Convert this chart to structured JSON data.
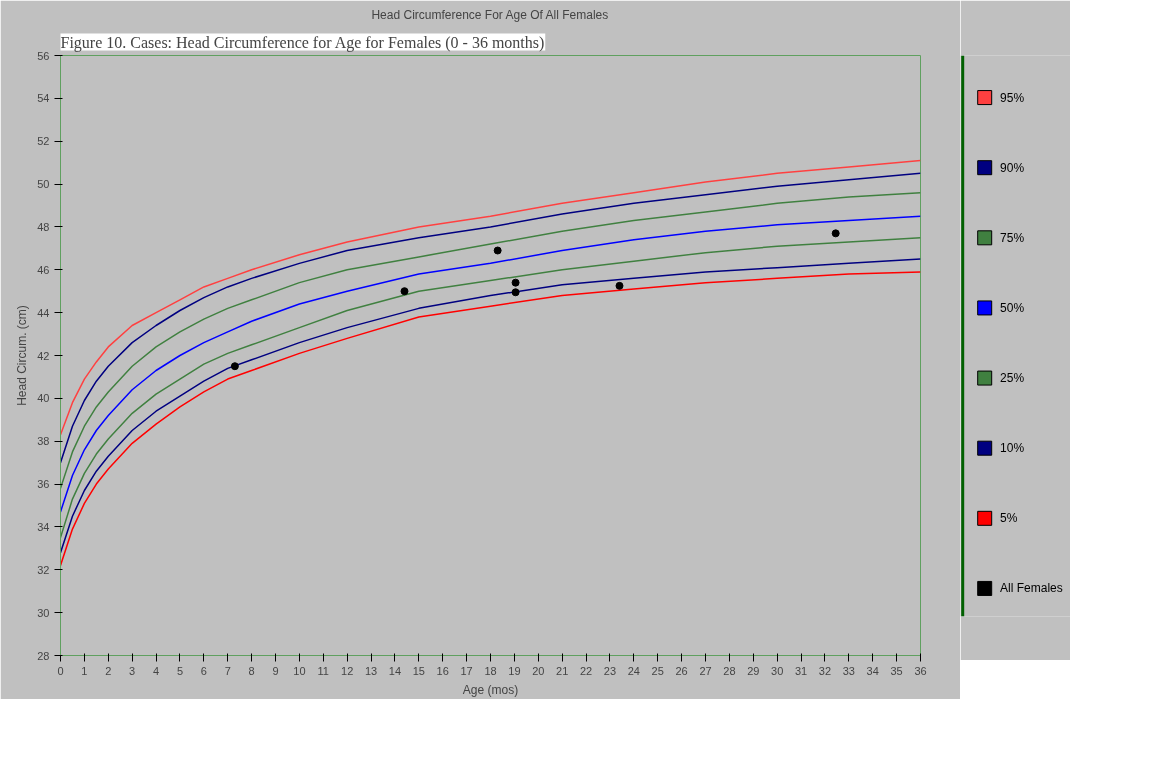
{
  "chart_data": {
    "type": "line",
    "title": "Head Circumference For Age Of All Females",
    "xlabel": "Age (mos)",
    "ylabel": "Head Circum. (cm)",
    "annotations": [
      "Figure 10. Cases: Head Circumference for Age for Females (0 - 36 months)"
    ],
    "x": [
      0,
      0.5,
      1,
      1.5,
      2,
      3,
      4,
      5,
      6,
      7,
      8,
      10,
      12,
      15,
      18,
      21,
      24,
      27,
      30,
      33,
      36
    ],
    "xlim": [
      0,
      36
    ],
    "xticks": [
      0,
      1,
      2,
      3,
      4,
      5,
      6,
      7,
      8,
      9,
      10,
      11,
      12,
      13,
      14,
      15,
      16,
      17,
      18,
      19,
      20,
      21,
      22,
      23,
      24,
      25,
      26,
      27,
      28,
      29,
      30,
      31,
      32,
      33,
      34,
      35,
      36
    ],
    "ylim": [
      28,
      56
    ],
    "yticks": [
      28,
      30,
      32,
      34,
      36,
      38,
      40,
      42,
      44,
      46,
      48,
      50,
      52,
      54,
      56
    ],
    "grid": false,
    "legend": "right",
    "marker": "none",
    "line_style": "solid",
    "series": [
      {
        "name": "95%",
        "color": "#ff4040",
        "values": [
          38.3,
          39.8,
          40.9,
          41.7,
          42.4,
          43.4,
          44.0,
          44.6,
          45.2,
          45.6,
          46.0,
          46.7,
          47.3,
          48.0,
          48.5,
          49.1,
          49.6,
          50.1,
          50.5,
          50.8,
          51.1
        ]
      },
      {
        "name": "90%",
        "color": "#000080",
        "values": [
          37.0,
          38.7,
          39.9,
          40.8,
          41.5,
          42.6,
          43.4,
          44.1,
          44.7,
          45.2,
          45.6,
          46.3,
          46.9,
          47.5,
          48.0,
          48.6,
          49.1,
          49.5,
          49.9,
          50.2,
          50.5
        ]
      },
      {
        "name": "75%",
        "color": "#408040",
        "values": [
          35.8,
          37.5,
          38.7,
          39.6,
          40.3,
          41.5,
          42.4,
          43.1,
          43.7,
          44.2,
          44.6,
          45.4,
          46.0,
          46.6,
          47.2,
          47.8,
          48.3,
          48.7,
          49.1,
          49.4,
          49.6
        ]
      },
      {
        "name": "50%",
        "color": "#0000ff",
        "values": [
          34.7,
          36.4,
          37.6,
          38.5,
          39.2,
          40.4,
          41.3,
          42.0,
          42.6,
          43.1,
          43.6,
          44.4,
          45.0,
          45.8,
          46.3,
          46.9,
          47.4,
          47.8,
          48.1,
          48.3,
          48.5
        ]
      },
      {
        "name": "25%",
        "color": "#408040",
        "values": [
          33.5,
          35.3,
          36.5,
          37.4,
          38.1,
          39.3,
          40.2,
          40.9,
          41.6,
          42.1,
          42.5,
          43.3,
          44.1,
          45.0,
          45.5,
          46.0,
          46.4,
          46.8,
          47.1,
          47.3,
          47.5
        ]
      },
      {
        "name": "10%",
        "color": "#000080",
        "values": [
          32.8,
          34.5,
          35.7,
          36.6,
          37.3,
          38.5,
          39.4,
          40.1,
          40.8,
          41.4,
          41.8,
          42.6,
          43.3,
          44.2,
          44.8,
          45.3,
          45.6,
          45.9,
          46.1,
          46.3,
          46.5
        ]
      },
      {
        "name": " 5%",
        "color": "#ff0000",
        "values": [
          32.2,
          33.9,
          35.1,
          36.0,
          36.7,
          37.9,
          38.8,
          39.6,
          40.3,
          40.9,
          41.3,
          42.1,
          42.8,
          43.8,
          44.3,
          44.8,
          45.1,
          45.4,
          45.6,
          45.8,
          45.9
        ]
      },
      {
        "name": "All Females",
        "type": "scatter",
        "marker": "circle",
        "color": "#000000",
        "x": [
          7.3,
          14.4,
          18.3,
          19.05,
          19.05,
          23.4,
          32.45
        ],
        "values": [
          41.5,
          45.0,
          46.9,
          45.4,
          44.95,
          45.25,
          47.7
        ]
      }
    ]
  }
}
